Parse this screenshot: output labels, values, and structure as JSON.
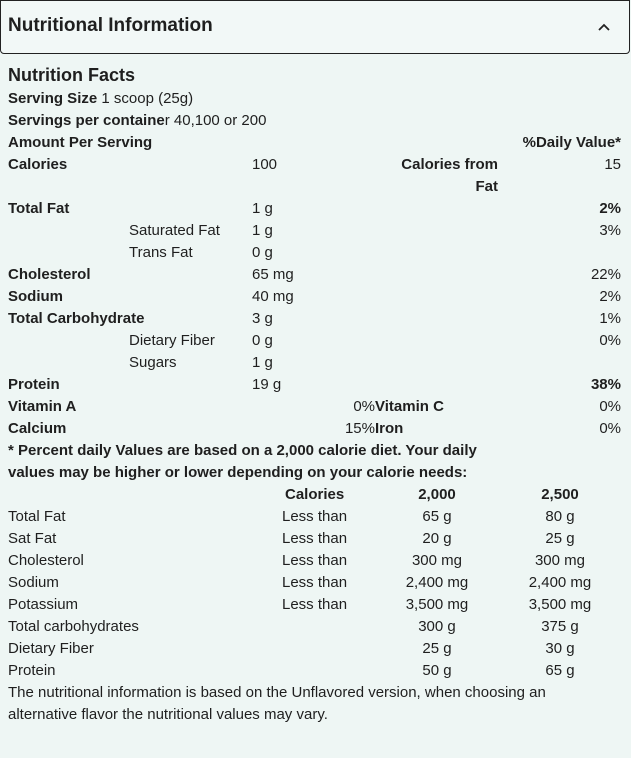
{
  "header": {
    "title": "Nutritional Information"
  },
  "facts": {
    "title": "Nutrition Facts",
    "serving_size": {
      "label": "Serving Size",
      "value": "1 scoop (25g)"
    },
    "servings_per_container": {
      "label": "Servings per containe",
      "value": "r 40,100 or 200"
    },
    "amount_per_serving": "Amount Per Serving",
    "daily_value_header": "%Daily Value*",
    "calories": {
      "label": "Calories",
      "value": "100",
      "from_fat_label": "Calories from Fat",
      "from_fat_value": "15"
    },
    "rows": [
      {
        "label": "Total Fat",
        "amount": "1 g",
        "daily_value": "2%"
      },
      {
        "label": "Saturated Fat",
        "amount": "1 g",
        "daily_value": "3%"
      },
      {
        "label": "Trans Fat",
        "amount": "0 g"
      },
      {
        "label": "Cholesterol",
        "amount": "65 mg",
        "daily_value": "22%"
      },
      {
        "label": "Sodium",
        "amount": "40 mg",
        "daily_value": "2%"
      },
      {
        "label": "Total Carbohydrate",
        "amount": "3 g",
        "daily_value": "1%"
      },
      {
        "label": "Dietary Fiber",
        "amount": "0 g",
        "daily_value": "0%"
      },
      {
        "label": "Sugars",
        "amount": "1 g"
      },
      {
        "label": "Protein",
        "amount": "19 g",
        "daily_value": "38%"
      }
    ],
    "vitamins": [
      {
        "left_label": "Vitamin A",
        "left_value": "0%",
        "right_label": "Vitamin C",
        "right_value": "0%"
      },
      {
        "left_label": "Calcium",
        "left_value": "15%",
        "right_label": "Iron",
        "right_value": "0%"
      }
    ]
  },
  "footnote": "* Percent daily Values are based on a 2,000 calorie diet. Your daily values may be higher or lower depending on your calorie needs:",
  "reference_table": {
    "header": [
      "Calories",
      "2,000",
      "2,500"
    ],
    "rows": [
      {
        "name": "Total Fat",
        "qualifier": "Less than",
        "at_2000": "65 g",
        "at_2500": "80 g"
      },
      {
        "name": "Sat Fat",
        "qualifier": "Less than",
        "at_2000": "20 g",
        "at_2500": "25 g"
      },
      {
        "name": "Cholesterol",
        "qualifier": "Less than",
        "at_2000": "300 mg",
        "at_2500": "300 mg"
      },
      {
        "name": "Sodium",
        "qualifier": "Less than",
        "at_2000": "2,400 mg",
        "at_2500": "2,400 mg"
      },
      {
        "name": "Potassium",
        "qualifier": "Less than",
        "at_2000": "3,500 mg",
        "at_2500": "3,500 mg"
      },
      {
        "name": "Total carbohydrates",
        "at_2000": "300 g",
        "at_2500": "375 g"
      },
      {
        "name": "Dietary Fiber",
        "at_2000": "25 g",
        "at_2500": "30 g"
      },
      {
        "name": "Protein",
        "at_2000": "50 g",
        "at_2500": "65 g"
      }
    ]
  },
  "disclaimer": "The nutritional information is based on the Unflavored version, when choosing an alternative flavor the nutritional values may vary."
}
